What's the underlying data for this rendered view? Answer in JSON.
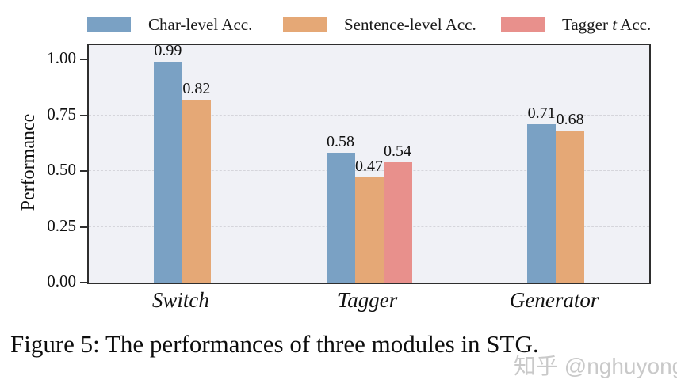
{
  "figure": {
    "caption": "Figure 5: The performances of three modules in STG.",
    "watermark": "知乎 @nghuyong"
  },
  "chart_data": {
    "type": "bar",
    "title": "",
    "xlabel": "",
    "ylabel": "Performance",
    "categories": [
      "Switch",
      "Tagger",
      "Generator"
    ],
    "series": [
      {
        "name": "Char-level Acc.",
        "color": "#7aa1c4",
        "values": [
          0.99,
          0.58,
          0.71
        ]
      },
      {
        "name": "Sentence-level Acc.",
        "color": "#e5a876",
        "values": [
          0.82,
          0.47,
          0.68
        ]
      },
      {
        "name": "Tagger t Acc.",
        "color": "#e8908c",
        "values": [
          null,
          0.54,
          null
        ]
      }
    ],
    "ylim": [
      0,
      1.06
    ],
    "yticks": [
      0,
      0.25,
      0.5,
      0.75,
      1.0
    ],
    "ytick_labels": [
      "0.00",
      "0.25",
      "0.50",
      "0.75",
      "1.00"
    ],
    "grid": "horizontal-dashed",
    "legend_position": "top",
    "value_labels": true,
    "value_label_format": "2-decimals"
  },
  "legend": {
    "items": [
      {
        "label": "Char-level Acc.",
        "color": "#7aa1c4",
        "runs": [
          {
            "text": "Char-level Acc.",
            "italic": false
          }
        ]
      },
      {
        "label": "Sentence-level Acc.",
        "color": "#e5a876",
        "runs": [
          {
            "text": "Sentence-level Acc.",
            "italic": false
          }
        ]
      },
      {
        "label": "Tagger t Acc.",
        "color": "#e8908c",
        "runs": [
          {
            "text": "Tagger ",
            "italic": false
          },
          {
            "text": "t",
            "italic": true
          },
          {
            "text": " Acc.",
            "italic": false
          }
        ]
      }
    ]
  }
}
